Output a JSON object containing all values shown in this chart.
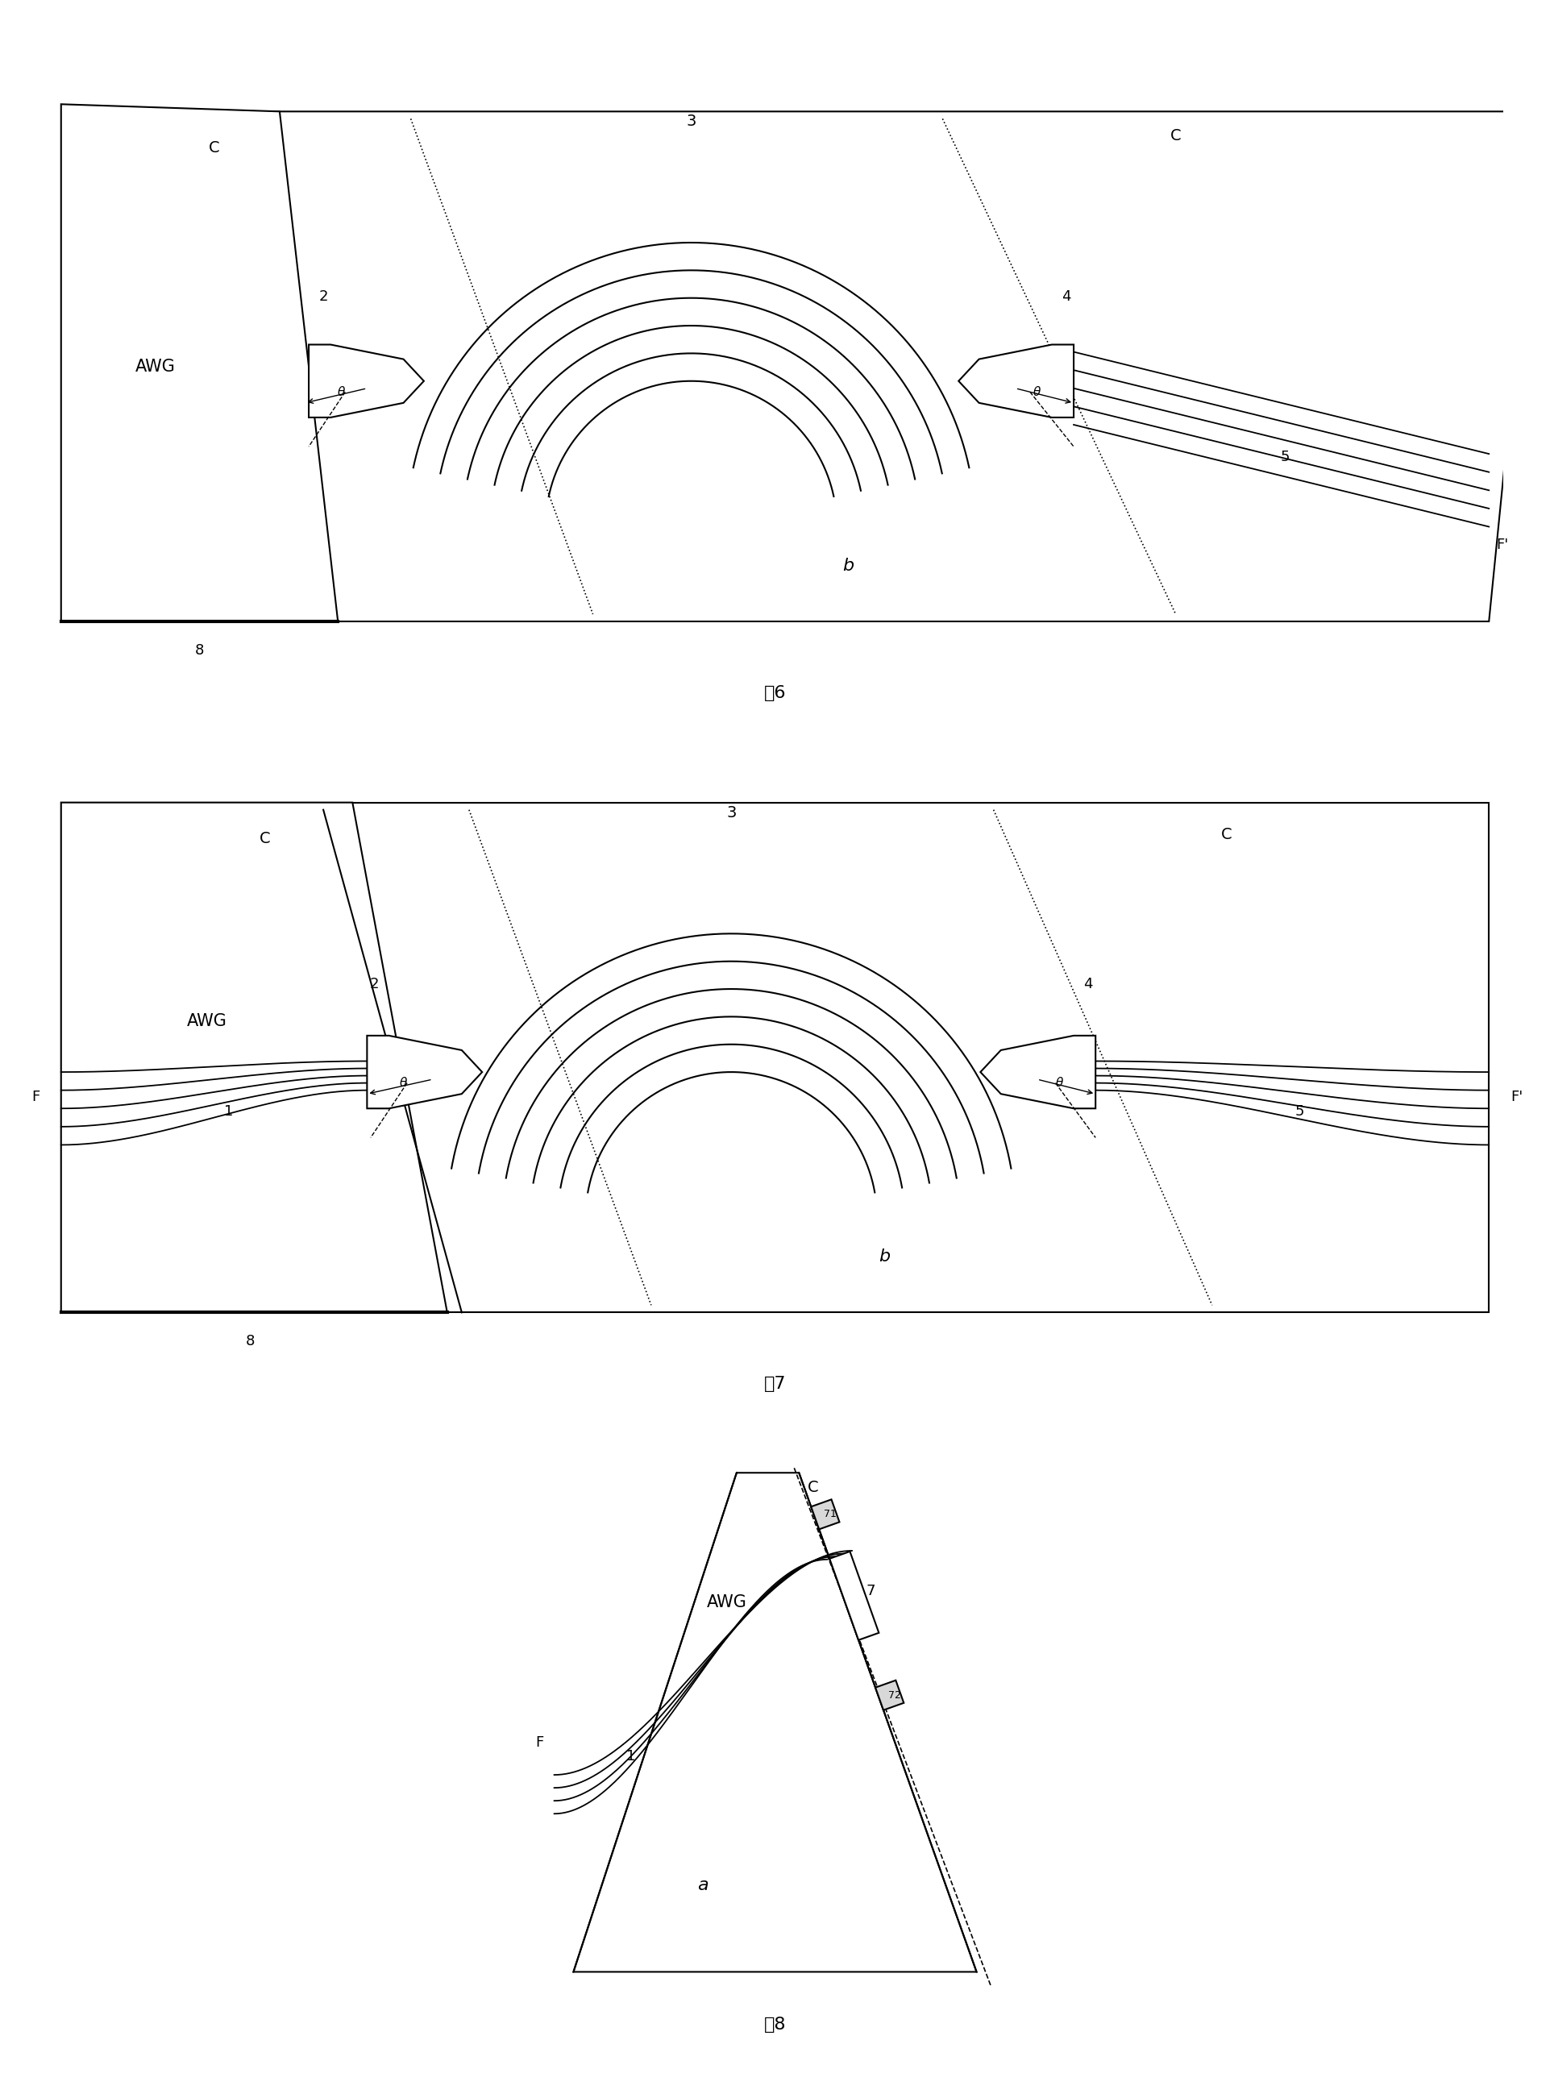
{
  "bg_color": "#ffffff",
  "line_color": "#000000",
  "lw": 1.5,
  "alw": 1.5,
  "n_arcs": 6,
  "fig6_label": "图6",
  "fig7_label": "图7",
  "fig8_label": "图8"
}
